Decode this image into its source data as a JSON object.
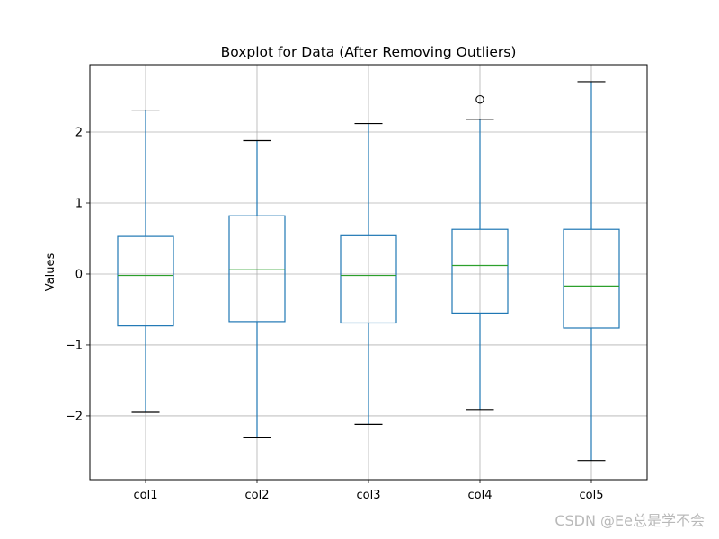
{
  "chart_data": {
    "type": "boxplot",
    "title": "Boxplot for Data (After Removing Outliers)",
    "xlabel": "",
    "ylabel": "Values",
    "ylim": [
      -2.9,
      2.95
    ],
    "yticks": [
      -2,
      -1,
      0,
      1,
      2
    ],
    "ytick_labels": [
      "−2",
      "−1",
      "0",
      "1",
      "2"
    ],
    "grid": true,
    "box_color": "#1f77b4",
    "median_color": "#2ca02c",
    "whisker_color": "#1f77b4",
    "cap_color": "#000000",
    "categories": [
      "col1",
      "col2",
      "col3",
      "col4",
      "col5"
    ],
    "boxes": [
      {
        "label": "col1",
        "whislo": -1.95,
        "q1": -0.73,
        "median": -0.02,
        "q3": 0.53,
        "whishi": 2.31,
        "fliers": []
      },
      {
        "label": "col2",
        "whislo": -2.31,
        "q1": -0.67,
        "median": 0.06,
        "q3": 0.82,
        "whishi": 1.88,
        "fliers": []
      },
      {
        "label": "col3",
        "whislo": -2.12,
        "q1": -0.69,
        "median": -0.02,
        "q3": 0.54,
        "whishi": 2.12,
        "fliers": []
      },
      {
        "label": "col4",
        "whislo": -1.91,
        "q1": -0.55,
        "median": 0.12,
        "q3": 0.63,
        "whishi": 2.18,
        "fliers": [
          2.46
        ]
      },
      {
        "label": "col5",
        "whislo": -2.63,
        "q1": -0.76,
        "median": -0.17,
        "q3": 0.63,
        "whishi": 2.71,
        "fliers": []
      }
    ]
  },
  "watermark": "CSDN @Ee总是学不会"
}
